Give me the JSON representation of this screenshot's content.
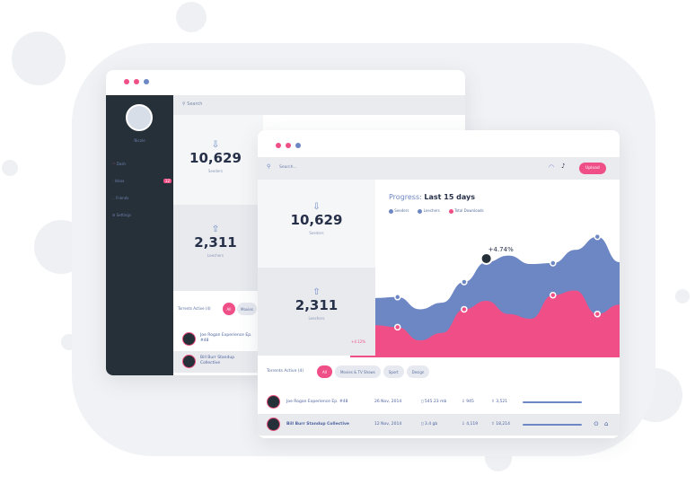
{
  "colors": {
    "accent": "#ef4f86",
    "blue": "#6d87c5",
    "sidebar": "#263038",
    "dots": [
      "#ef4f86",
      "#ef4f86",
      "#6d87c5"
    ]
  },
  "back_window": {
    "search_placeholder": "Search",
    "profile_name": "Nicole",
    "nav": [
      {
        "label": "Dash",
        "icon": "gauge-icon",
        "active": true
      },
      {
        "label": "Inbox",
        "badge": "12",
        "icon": "inbox-icon"
      },
      {
        "label": "Friends",
        "icon": "users-icon"
      },
      {
        "label": "Settings",
        "icon": "gear-icon"
      }
    ],
    "stats": [
      {
        "value": "10,629",
        "label": "Seeders"
      },
      {
        "value": "2,311",
        "label": "Leechers"
      }
    ],
    "torrents_label": "Torrents Active (4)",
    "filter_all": "All",
    "filter_more": "Movies",
    "rows": [
      "Joe Rogan Experience Ep. #48",
      "Bill Burr Standup Collective"
    ]
  },
  "front_window": {
    "search_placeholder": "Search...",
    "upload_button": "Upload",
    "stats": [
      {
        "value": "10,629",
        "label": "Seeders"
      },
      {
        "value": "2,311",
        "label": "Leechers",
        "change": "+4.12%"
      }
    ],
    "chart": {
      "title_prefix": "Progress:",
      "title_range": "Last 15 days",
      "legend": [
        {
          "name": "Seeders",
          "color": "#6d87c5"
        },
        {
          "name": "Leechers",
          "color": "#6d87c5"
        },
        {
          "name": "Total Downloads",
          "color": "#ef4f86"
        }
      ],
      "annotation": "+4.74%",
      "series_blue": [
        63,
        64,
        51,
        58,
        80,
        101,
        108,
        99,
        100,
        114,
        128,
        101
      ],
      "series_pink": [
        34,
        32,
        18,
        26,
        51,
        60,
        46,
        41,
        66,
        71,
        46,
        56
      ]
    },
    "torrents_label": "Torrents Active (4)",
    "filters": [
      "All",
      "Movies & TV Shows",
      "Sport",
      "Design"
    ],
    "rows": [
      {
        "name": "Joe Rogan Experience Ep. #48",
        "date": "26 Nov, 2014",
        "size": "545.23 mb",
        "down": "945",
        "up": "3,521",
        "progress": 0.8
      },
      {
        "name": "Bill Burr Standup Collective",
        "date": "12 Nov, 2014",
        "size": "3.4 gb",
        "down": "4,119",
        "up": "18,214",
        "progress": 0.8
      }
    ]
  }
}
